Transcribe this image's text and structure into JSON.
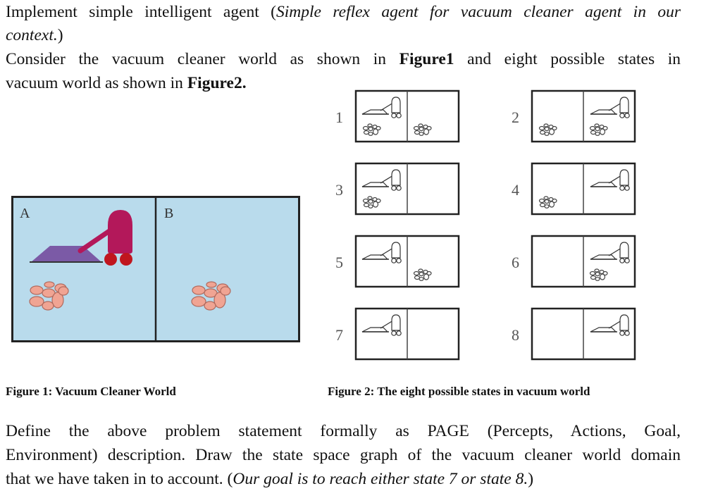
{
  "intro": {
    "line1_prefix": "Implement simple intelligent agent (",
    "line1_italic": "Simple reflex agent for vacuum cleaner agent in our",
    "line2_italic": "context.",
    "line2_suffix": ")",
    "line3_prefix": "Consider the vacuum cleaner world as shown in ",
    "line3_bold": "Figure1",
    "line3_suffix": " and  eight possible states in",
    "line4_prefix": "vacuum world as shown in  ",
    "line4_bold": "Figure2."
  },
  "figure1": {
    "caption": "Figure 1:  Vacuum Cleaner World",
    "label_a": "A",
    "label_b": "B",
    "colors": {
      "background": "#b9dbec",
      "vacuum_body": "#b3185a",
      "vacuum_head": "#7b5aa6",
      "dirt": "#f0a493"
    }
  },
  "figure2": {
    "caption": "Figure 2: The eight possible states in vacuum world",
    "states": [
      {
        "number": "1",
        "vacuum": "left",
        "dirt_left": true,
        "dirt_right": true
      },
      {
        "number": "2",
        "vacuum": "right",
        "dirt_left": true,
        "dirt_right": true
      },
      {
        "number": "3",
        "vacuum": "left",
        "dirt_left": true,
        "dirt_right": false
      },
      {
        "number": "4",
        "vacuum": "right",
        "dirt_left": true,
        "dirt_right": false
      },
      {
        "number": "5",
        "vacuum": "left",
        "dirt_left": false,
        "dirt_right": true
      },
      {
        "number": "6",
        "vacuum": "right",
        "dirt_left": false,
        "dirt_right": true
      },
      {
        "number": "7",
        "vacuum": "left",
        "dirt_left": false,
        "dirt_right": false
      },
      {
        "number": "8",
        "vacuum": "right",
        "dirt_left": false,
        "dirt_right": false
      }
    ]
  },
  "task": {
    "line1": "Define the above problem statement formally as PAGE (Percepts, Actions, Goal,",
    "line2": "Environment) description. Draw the state space graph of the vacuum cleaner world domain",
    "line3_prefix": "that we have taken in to account. (",
    "line3_italic": "Our goal is to reach either state 7 or state 8.",
    "line3_suffix": ")"
  }
}
